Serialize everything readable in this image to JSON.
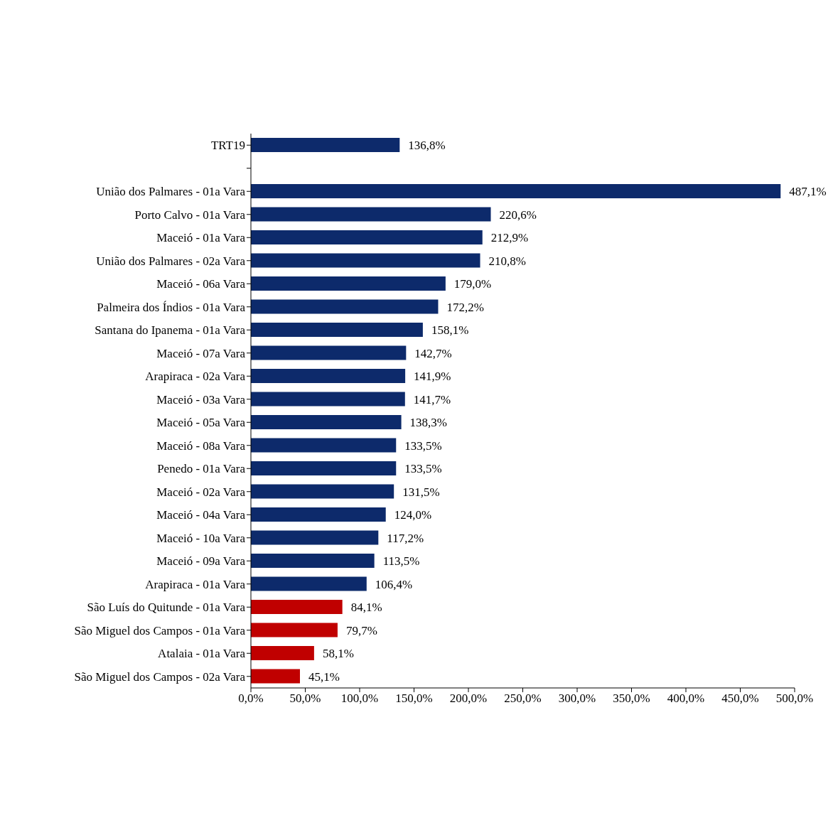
{
  "chart_data": {
    "type": "bar",
    "orientation": "horizontal",
    "categories": [
      "TRT19",
      null,
      "União dos Palmares - 01a Vara",
      "Porto Calvo - 01a Vara",
      "Maceió - 01a Vara",
      "União dos Palmares - 02a Vara",
      "Maceió - 06a Vara",
      "Palmeira dos Índios - 01a Vara",
      "Santana do Ipanema - 01a Vara",
      "Maceió - 07a Vara",
      "Arapiraca - 02a Vara",
      "Maceió - 03a Vara",
      "Maceió - 05a Vara",
      "Maceió - 08a Vara",
      "Penedo - 01a Vara",
      "Maceió - 02a Vara",
      "Maceió - 04a Vara",
      "Maceió - 10a Vara",
      "Maceió - 09a Vara",
      "Arapiraca - 01a Vara",
      "São Luís do Quitunde - 01a Vara",
      "São Miguel dos Campos - 01a Vara",
      "Atalaia - 01a Vara",
      "São Miguel dos Campos - 02a Vara"
    ],
    "values": [
      136.8,
      null,
      487.1,
      220.6,
      212.9,
      210.8,
      179.0,
      172.2,
      158.1,
      142.7,
      141.9,
      141.7,
      138.3,
      133.5,
      133.5,
      131.5,
      124.0,
      117.2,
      113.5,
      106.4,
      84.1,
      79.7,
      58.1,
      45.1
    ],
    "colors": [
      "#0d2a6b",
      null,
      "#0d2a6b",
      "#0d2a6b",
      "#0d2a6b",
      "#0d2a6b",
      "#0d2a6b",
      "#0d2a6b",
      "#0d2a6b",
      "#0d2a6b",
      "#0d2a6b",
      "#0d2a6b",
      "#0d2a6b",
      "#0d2a6b",
      "#0d2a6b",
      "#0d2a6b",
      "#0d2a6b",
      "#0d2a6b",
      "#0d2a6b",
      "#0d2a6b",
      "#c00000",
      "#c00000",
      "#c00000",
      "#c00000"
    ],
    "value_labels": [
      "136,8%",
      null,
      "487,1%",
      "220,6%",
      "212,9%",
      "210,8%",
      "179,0%",
      "172,2%",
      "158,1%",
      "142,7%",
      "141,9%",
      "141,7%",
      "138,3%",
      "133,5%",
      "133,5%",
      "131,5%",
      "124,0%",
      "117,2%",
      "113,5%",
      "106,4%",
      "84,1%",
      "79,7%",
      "58,1%",
      "45,1%"
    ],
    "xlim": [
      0,
      500
    ],
    "xticks": [
      {
        "value": 0,
        "label": "0,0%"
      },
      {
        "value": 50,
        "label": "50,0%"
      },
      {
        "value": 100,
        "label": "100,0%"
      },
      {
        "value": 150,
        "label": "150,0%"
      },
      {
        "value": 200,
        "label": "200,0%"
      },
      {
        "value": 250,
        "label": "250,0%"
      },
      {
        "value": 300,
        "label": "300,0%"
      },
      {
        "value": 350,
        "label": "350,0%"
      },
      {
        "value": 400,
        "label": "400,0%"
      },
      {
        "value": 450,
        "label": "450,0%"
      },
      {
        "value": 500,
        "label": "500,0%"
      }
    ],
    "grid": false
  }
}
